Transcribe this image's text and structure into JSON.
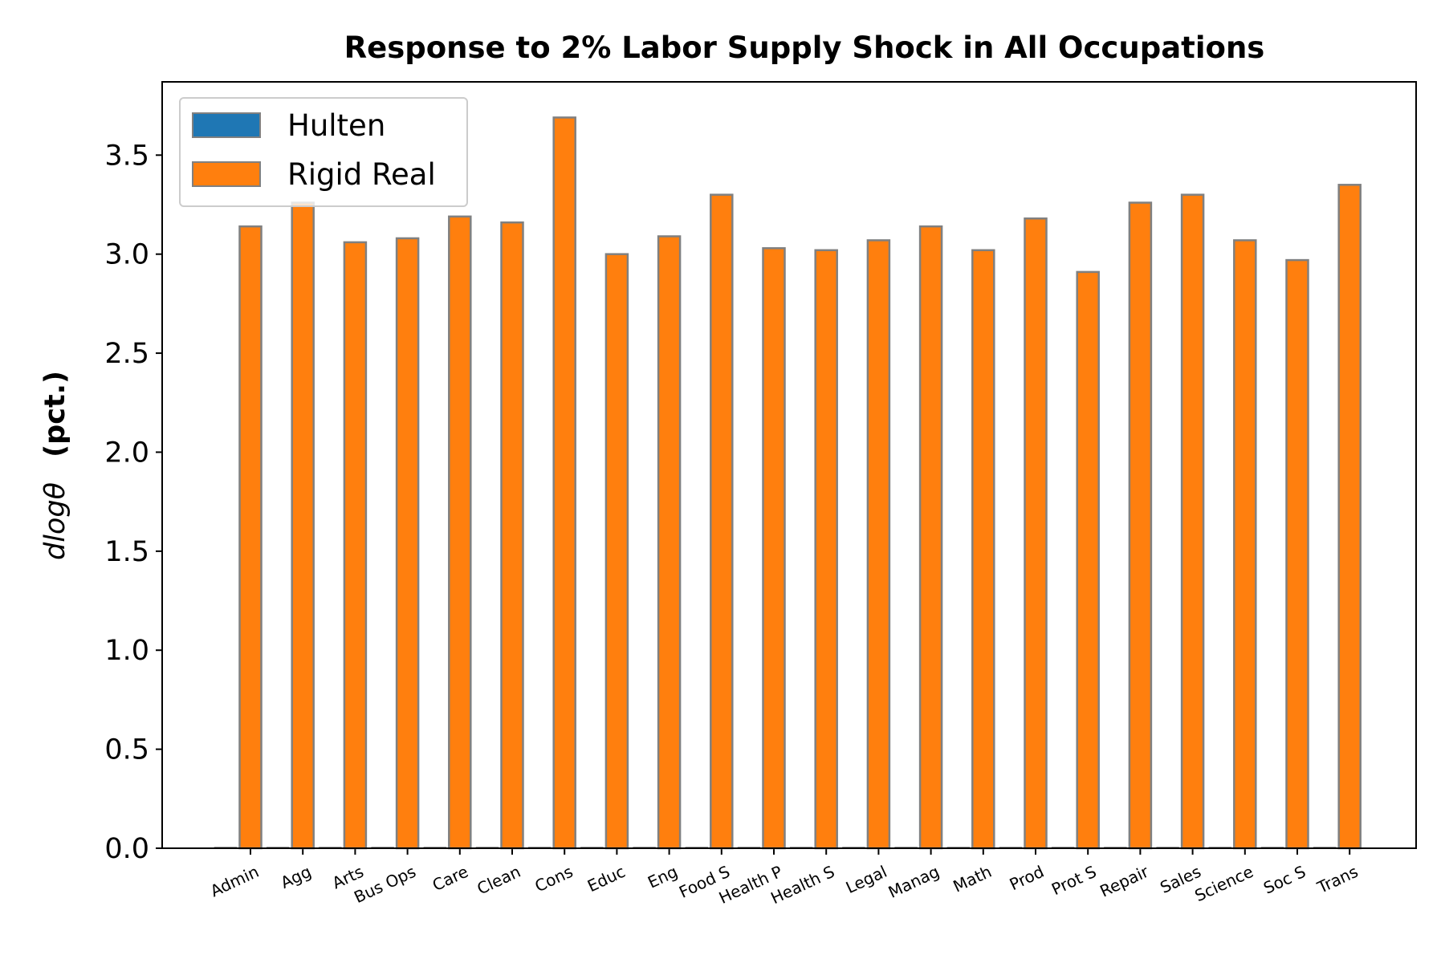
{
  "chart_data": {
    "type": "bar",
    "title": "Response to 2% Labor Supply Shock in All Occupations",
    "ylabel": "d log θ (pct.)",
    "ylabel_parts": {
      "math": "dlogθ",
      "unit": "(pct.)"
    },
    "xlabel": "",
    "ylim": [
      0,
      3.87
    ],
    "yticks": [
      "0.0",
      "0.5",
      "1.0",
      "1.5",
      "2.0",
      "2.5",
      "3.0",
      "3.5"
    ],
    "grid": false,
    "legend_position": "top-left",
    "categories": [
      "Admin",
      "Agg",
      "Arts",
      "Bus Ops",
      "Care",
      "Clean",
      "Cons",
      "Educ",
      "Eng",
      "Food S",
      "Health P",
      "Health S",
      "Legal",
      "Manag",
      "Math",
      "Prod",
      "Prot S",
      "Repair",
      "Sales",
      "Science",
      "Soc S",
      "Trans"
    ],
    "series": [
      {
        "name": "Hulten",
        "color": "#1f77b4",
        "values": [
          0,
          0,
          0,
          0,
          0,
          0,
          0,
          0,
          0,
          0,
          0,
          0,
          0,
          0,
          0,
          0,
          0,
          0,
          0,
          0,
          0,
          0
        ]
      },
      {
        "name": "Rigid Real",
        "color": "#ff7f0e",
        "values": [
          3.14,
          3.26,
          3.06,
          3.08,
          3.19,
          3.16,
          3.69,
          3.0,
          3.09,
          3.3,
          3.03,
          3.02,
          3.07,
          3.14,
          3.02,
          3.18,
          2.91,
          3.26,
          3.3,
          3.07,
          2.97,
          3.35
        ]
      }
    ],
    "edge_color": "#808080"
  }
}
